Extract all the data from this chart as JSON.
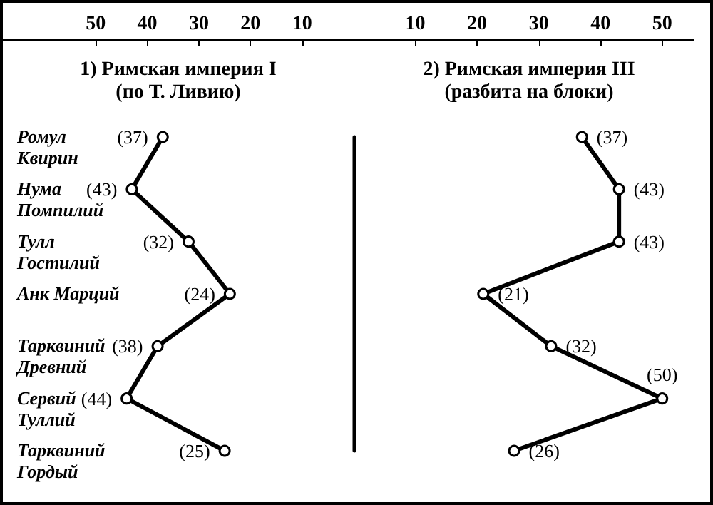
{
  "chart_data": [
    {
      "type": "line",
      "orientation": "horizontal",
      "title": "1) Римская империя I\n(по Т. Ливию)",
      "categories": [
        "Ромул\nКвирин",
        "Нума\nПомпилий",
        "Тулл\nГостилий",
        "Анк Марций",
        "Тарквиний\nДревний",
        "Сервий\nТуллий",
        "Тарквиний\nГордый"
      ],
      "series": [
        {
          "color": "#000000",
          "values": [
            37,
            43,
            32,
            24,
            38,
            44,
            25
          ],
          "value_labels": [
            "(37)",
            "(43)",
            "(32)",
            "(24)",
            "(38)",
            "(44)",
            "(25)"
          ]
        }
      ],
      "xlim": [
        68,
        0
      ],
      "xticks": [
        50,
        40,
        30,
        20,
        10
      ],
      "marker": "circle",
      "grid": false
    },
    {
      "type": "line",
      "orientation": "horizontal",
      "title": "2) Римская империя III\n(разбита на блоки)",
      "categories": [
        null,
        null,
        null,
        null,
        null,
        null,
        null
      ],
      "series": [
        {
          "color": "#000000",
          "values": [
            37,
            43,
            43,
            21,
            32,
            50,
            26
          ],
          "value_labels": [
            "(37)",
            "(43)",
            "(43)",
            "(21)",
            "(32)",
            "(50)",
            "(26)"
          ]
        }
      ],
      "xlim": [
        0,
        55
      ],
      "xticks": [
        10,
        20,
        30,
        40,
        50
      ],
      "marker": "circle",
      "grid": false
    }
  ]
}
